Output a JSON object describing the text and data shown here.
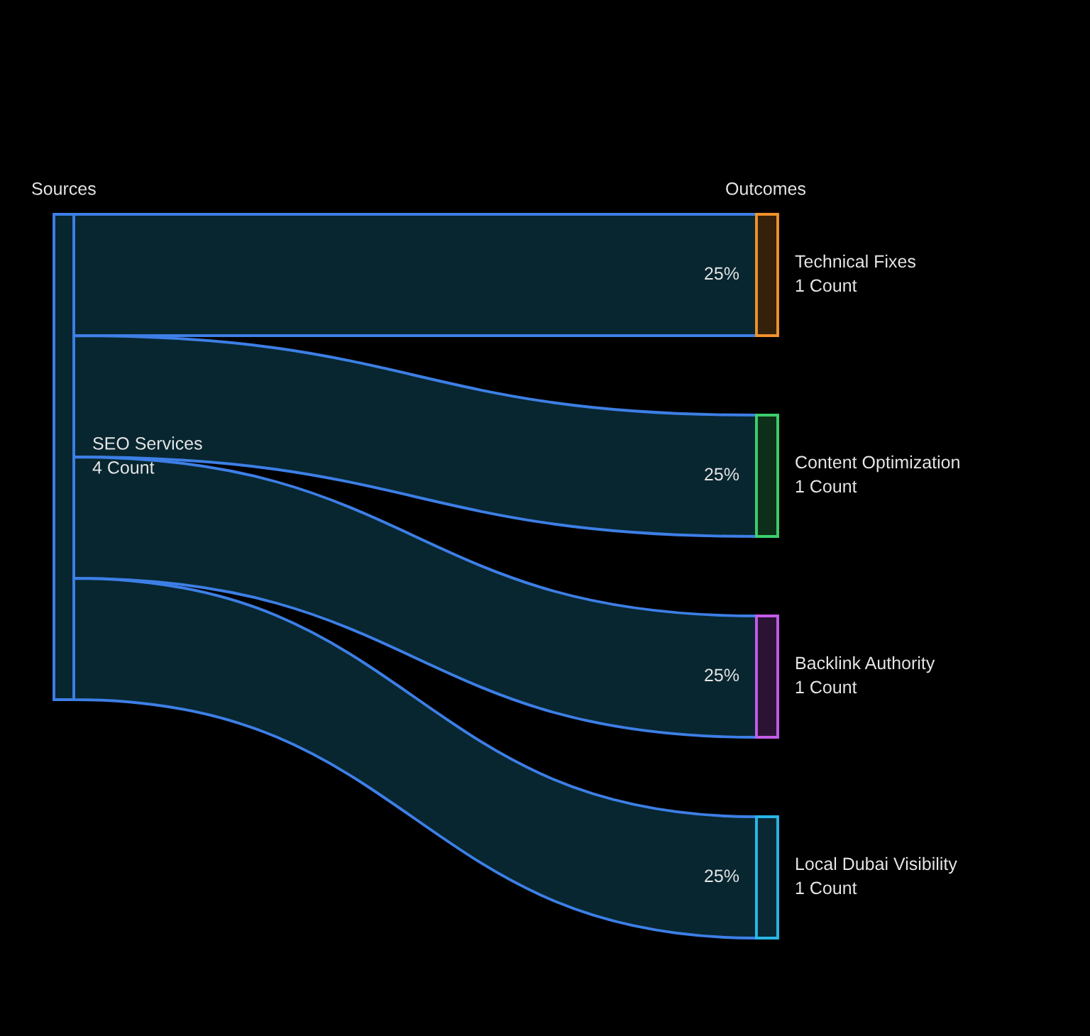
{
  "chart_data": {
    "type": "other",
    "categories": [
      "Technical Fixes",
      "Content Optimization",
      "Backlink Authority",
      "Local Dubai Visibility"
    ],
    "values": [
      1,
      1,
      1,
      1
    ],
    "value_labels": [
      "1 Count",
      "1 Count",
      "1 Count",
      "1 Count"
    ],
    "colors": [
      "#f0922b",
      "#3ccf6b",
      "#c35ce8",
      "#29b6e6"
    ],
    "series": [
      {
        "color": "#3d7fe6",
        "values": [
          25,
          25,
          25,
          25
        ],
        "value_labels": [
          "25%",
          "25%",
          "25%",
          "25%"
        ]
      }
    ],
    "annotations": [
      "Sources",
      "Outcomes",
      "SEO Services",
      "4 Count"
    ]
  }
}
